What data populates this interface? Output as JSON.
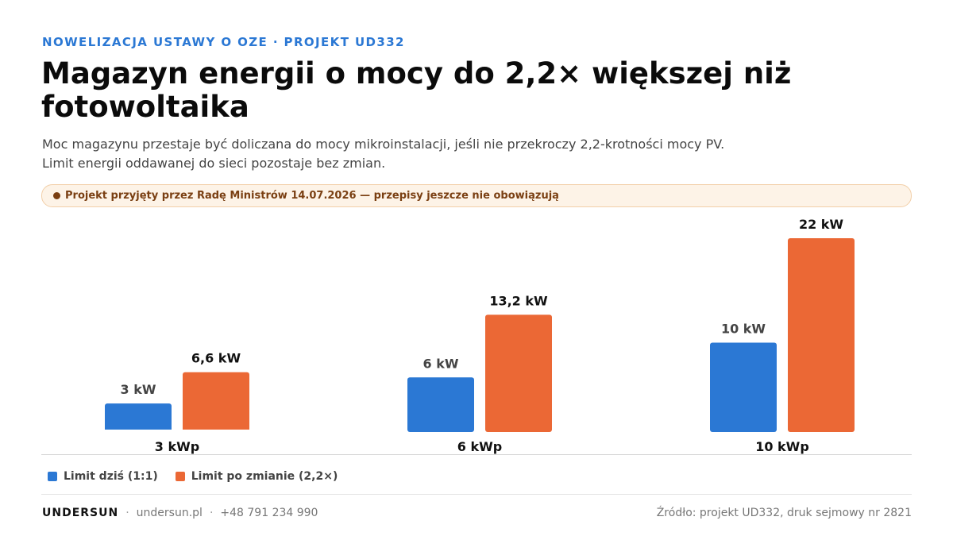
{
  "header": {
    "kicker": "NOWELIZACJA USTAWY O OZE · PROJEKT UD332",
    "title": "Magazyn energii o mocy do 2,2× większej niż fotowoltaika",
    "subtitle": "Moc magazynu przestaje być doliczana do mocy mikroinstalacji, jeśli nie przekroczy 2,2-krotności mocy PV. Limit energii oddawanej do sieci pozostaje bez zmian."
  },
  "status": {
    "text": "Projekt przyjęty przez Radę Ministrów 14.07.2026 — przepisy jeszcze nie obowiązują"
  },
  "chart_data": {
    "type": "bar",
    "categories": [
      "3 kWp",
      "6 kWp",
      "10 kWp"
    ],
    "series": [
      {
        "name": "Limit dziś (1:1)",
        "values": [
          3,
          6,
          10
        ],
        "labels": [
          "3 kW",
          "6 kW",
          "10 kW"
        ],
        "color": "#2b78d4"
      },
      {
        "name": "Limit po zmianie (2,2×)",
        "values": [
          6.6,
          13.2,
          22
        ],
        "labels": [
          "6,6 kW",
          "13,2 kW",
          "22 kW"
        ],
        "color": "#eb6835"
      }
    ],
    "ylim": [
      0,
      22
    ],
    "grid": false,
    "legend": "bottom-left"
  },
  "footer": {
    "brand": "UNDERSUN",
    "website": "undersun.pl",
    "phone": "+48 791 234 990",
    "source": "Źródło: projekt UD332, druk sejmowy nr 2821"
  }
}
